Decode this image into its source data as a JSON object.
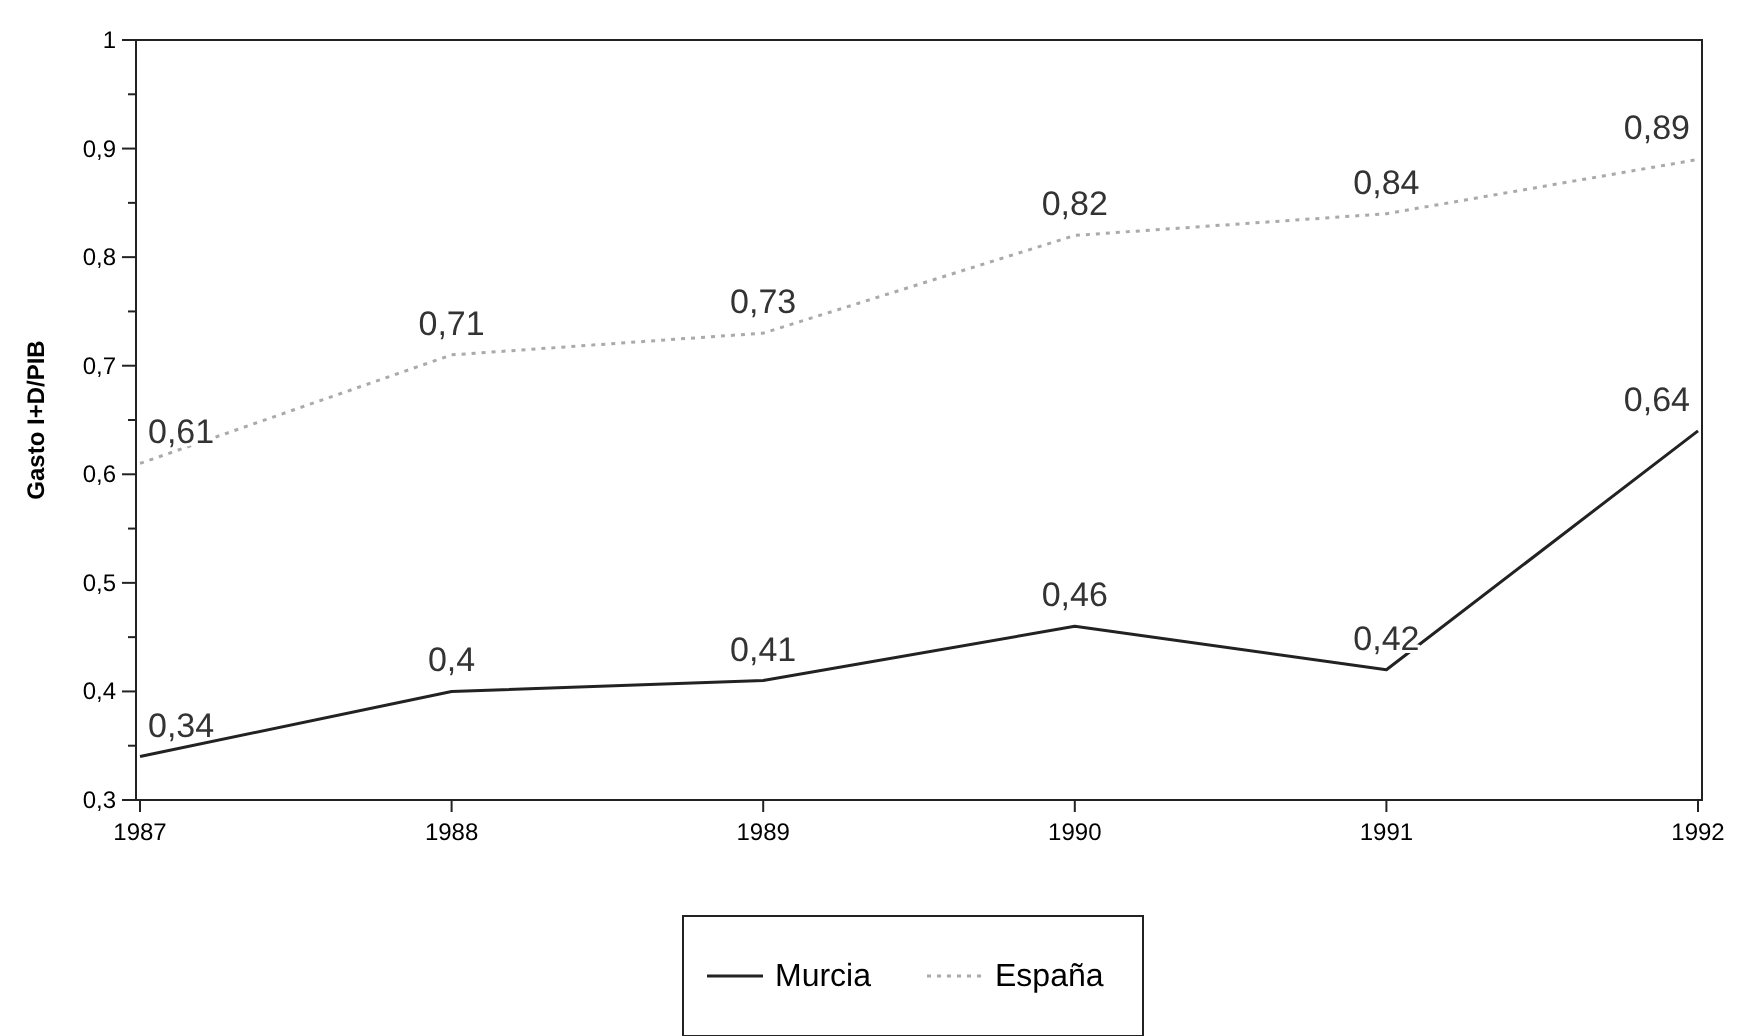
{
  "chart_data": {
    "type": "line",
    "ylabel": "Gasto I+D/PIB",
    "x": [
      1987,
      1988,
      1989,
      1990,
      1991,
      1992
    ],
    "series": [
      {
        "name": "Murcia",
        "color": "#222222",
        "line_style": "solid",
        "values": [
          0.34,
          0.4,
          0.41,
          0.46,
          0.42,
          0.64
        ],
        "value_labels": [
          "0,34",
          "0,4",
          "0,41",
          "0,46",
          "0,42",
          "0,64"
        ]
      },
      {
        "name": "España",
        "color": "#aaaaaa",
        "line_style": "dotted",
        "values": [
          0.61,
          0.71,
          0.73,
          0.82,
          0.84,
          0.89
        ],
        "value_labels": [
          "0,61",
          "0,71",
          "0,73",
          "0,82",
          "0,84",
          "0,89"
        ]
      }
    ],
    "xlim": [
      1987,
      1992
    ],
    "xticks": [
      1987,
      1988,
      1989,
      1990,
      1991,
      1992
    ],
    "ylim": [
      0.3,
      1
    ],
    "yticks": [
      {
        "value": 0.3,
        "label": "0,3"
      },
      {
        "value": 0.35,
        "label": null
      },
      {
        "value": 0.4,
        "label": "0,4"
      },
      {
        "value": 0.45,
        "label": null
      },
      {
        "value": 0.5,
        "label": "0,5"
      },
      {
        "value": 0.55,
        "label": null
      },
      {
        "value": 0.6,
        "label": "0,6"
      },
      {
        "value": 0.65,
        "label": null
      },
      {
        "value": 0.7,
        "label": "0,7"
      },
      {
        "value": 0.75,
        "label": null
      },
      {
        "value": 0.8,
        "label": "0,8"
      },
      {
        "value": 0.85,
        "label": null
      },
      {
        "value": 0.9,
        "label": "0,9"
      },
      {
        "value": 0.95,
        "label": null
      },
      {
        "value": 1,
        "label": "1"
      }
    ],
    "grid": false,
    "legend": "bottom",
    "marker": "none"
  }
}
